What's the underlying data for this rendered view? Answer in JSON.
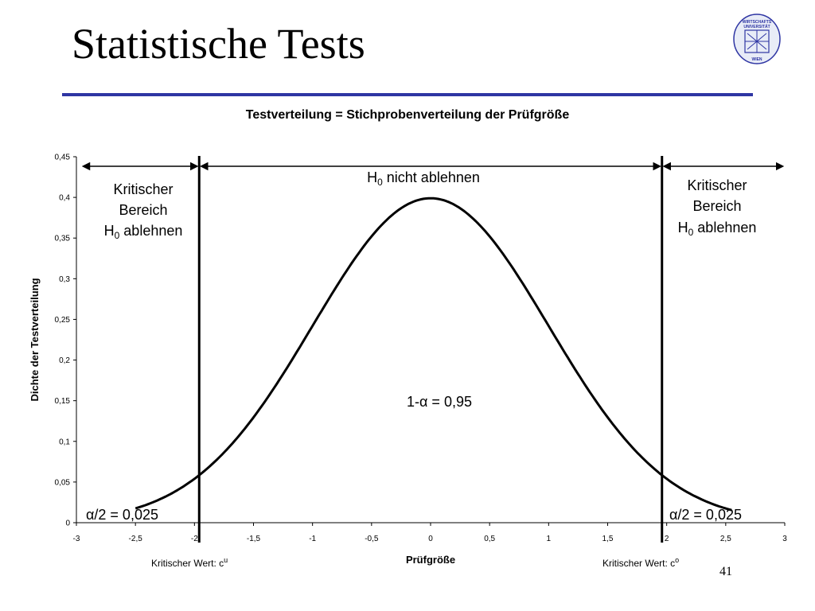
{
  "slide": {
    "title": "Statistische Tests",
    "page_number": "41",
    "logo_text": [
      "WIRTSCHAFTS",
      "UNIVERSITÄT",
      "WIEN"
    ]
  },
  "colors": {
    "title_rule": "#2e35a3",
    "curve": "#000000"
  },
  "chart_data": {
    "type": "line",
    "title": "Testverteilung = Stichprobenverteilung der Prüfgröße",
    "xlabel": "Prüfgröße",
    "ylabel": "Dichte der Testverteilung",
    "xlim": [
      -3,
      3
    ],
    "ylim": [
      0,
      0.45
    ],
    "x_ticks": [
      "-3",
      "-2,5",
      "-2",
      "-1,5",
      "-1",
      "-0,5",
      "0",
      "0,5",
      "1",
      "1,5",
      "2",
      "2,5",
      "3"
    ],
    "y_ticks": [
      "0",
      "0,05",
      "0,1",
      "0,15",
      "0,2",
      "0,25",
      "0,3",
      "0,35",
      "0,4",
      "0,45"
    ],
    "series": [
      {
        "x": [
          -2.5,
          -2.25,
          -2.0,
          -1.96,
          -1.75,
          -1.5,
          -1.25,
          -1.0,
          -0.75,
          -0.5,
          -0.25,
          0.0,
          0.25,
          0.5,
          0.75,
          1.0,
          1.25,
          1.5,
          1.75,
          1.96,
          2.0,
          2.25,
          2.5,
          2.55
        ],
        "y": [
          0.0175,
          0.0317,
          0.054,
          0.0584,
          0.0863,
          0.1295,
          0.1826,
          0.242,
          0.3011,
          0.3521,
          0.3867,
          0.3989,
          0.3867,
          0.3521,
          0.3011,
          0.242,
          0.1826,
          0.1295,
          0.0863,
          0.0584,
          0.054,
          0.0317,
          0.0175,
          0.0154
        ]
      }
    ],
    "critical_values": [
      -1.96,
      1.96
    ],
    "critical_labels": {
      "lower": "Kritischer Wert: c",
      "lower_sup": "u",
      "upper": "Kritischer Wert: c",
      "upper_sup": "o"
    },
    "annotations": {
      "left_region": [
        "Kritischer",
        "Bereich",
        "H",
        "0",
        " ablehnen"
      ],
      "right_region": [
        "Kritischer",
        "Bereich",
        "H",
        "0",
        " ablehnen"
      ],
      "middle_region": [
        "H",
        "0",
        " nicht ablehnen"
      ],
      "center": "1-α = 0,95",
      "left_tail": "α/2 = 0,025",
      "right_tail": "α/2 = 0,025"
    }
  }
}
